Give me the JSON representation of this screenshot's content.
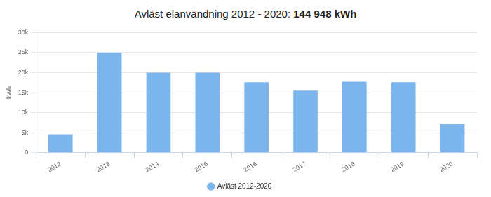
{
  "chart_data": {
    "type": "bar",
    "title": "Avläst elanvändning 2012 - 2020: 144 948 kWh",
    "y_label": "kWh",
    "categories": [
      "2012",
      "2013",
      "2014",
      "2015",
      "2016",
      "2017",
      "2018",
      "2019",
      "2020"
    ],
    "series": [
      {
        "name": "Avläst 2012-2020",
        "color": "#7cb5ec",
        "values": [
          4600,
          25000,
          20000,
          20000,
          17600,
          15500,
          17700,
          17600,
          7100
        ]
      }
    ],
    "ylim": [
      0,
      30000
    ],
    "yticks": [
      0,
      {
        "value": 5000,
        "label": "5k"
      },
      {
        "value": 10000,
        "label": "10k"
      },
      {
        "value": 15000,
        "label": "15k"
      },
      {
        "value": 20000,
        "label": "20k"
      },
      {
        "value": 25000,
        "label": "25k"
      },
      {
        "value": 30000,
        "label": "30k"
      }
    ],
    "grid": true,
    "legend": "bottom"
  }
}
